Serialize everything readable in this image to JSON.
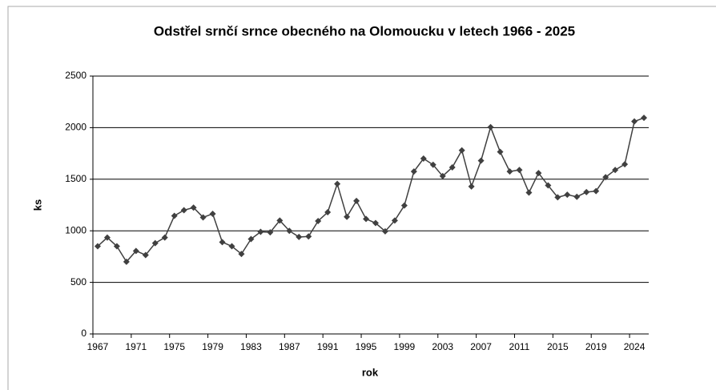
{
  "chart_data": {
    "type": "line",
    "title": "Odstřel srnčí srnce obecného na Olomoucku v letech 1966 - 2025",
    "x_label": "rok",
    "y_label": "ks",
    "categories": [
      "1967",
      null,
      null,
      null,
      "1971",
      null,
      null,
      null,
      "1975",
      null,
      null,
      null,
      "1979",
      null,
      null,
      null,
      "1983",
      null,
      null,
      null,
      "1987",
      null,
      null,
      null,
      "1991",
      null,
      null,
      null,
      "1995",
      null,
      null,
      null,
      "1999",
      null,
      null,
      null,
      "2003",
      null,
      null,
      null,
      "2007",
      null,
      null,
      null,
      "2011",
      null,
      null,
      null,
      "2015",
      null,
      null,
      null,
      "2019",
      null,
      null,
      null,
      "2024",
      null
    ],
    "series": [
      {
        "name": "ks",
        "color": "#404040",
        "values": [
          850,
          935,
          850,
          700,
          805,
          765,
          880,
          935,
          1145,
          1200,
          1225,
          1130,
          1165,
          890,
          850,
          775,
          920,
          990,
          985,
          1100,
          1000,
          940,
          945,
          1095,
          1180,
          1455,
          1135,
          1290,
          1115,
          1075,
          995,
          1100,
          1245,
          1575,
          1700,
          1640,
          1530,
          1615,
          1780,
          1430,
          1680,
          2005,
          1765,
          1575,
          1590,
          1370,
          1560,
          1440,
          1325,
          1350,
          1330,
          1375,
          1385,
          1520,
          1590,
          1645,
          2060,
          2095
        ]
      }
    ],
    "ylim": [
      0,
      2500
    ],
    "yticks": [
      0,
      500,
      1000,
      1500,
      2000,
      2500
    ],
    "grid": true
  }
}
